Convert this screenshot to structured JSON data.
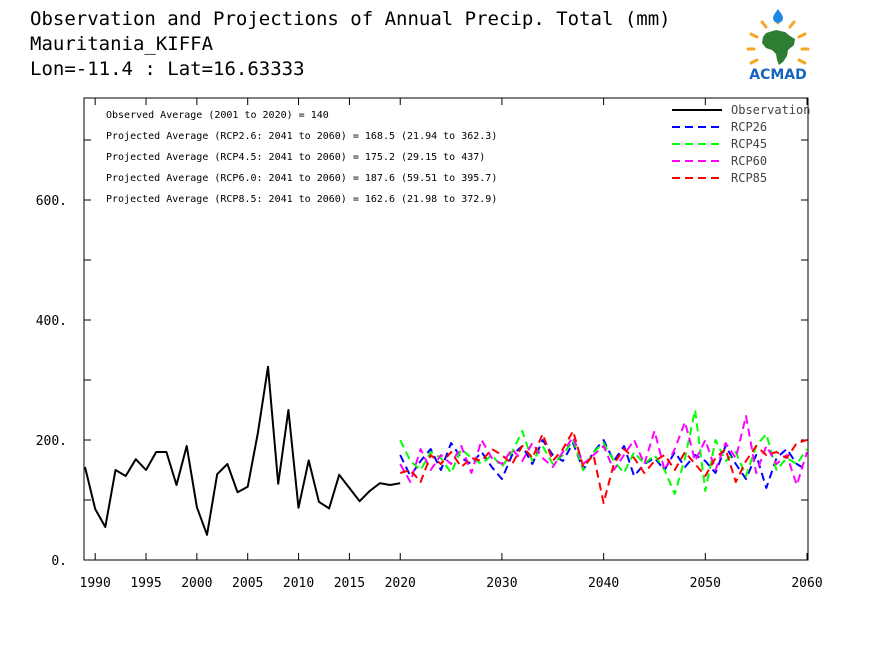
{
  "header": {
    "line1": "Observation and Projections of Annual Precip. Total (mm)",
    "line2": "Mauritania_KIFFA",
    "line3": "Lon=-11.4 : Lat=16.63333"
  },
  "logo": {
    "text": "ACMAD",
    "colors": {
      "africa": "#2e7d32",
      "rays": "#f5a623",
      "text": "#1565c0",
      "drop": "#1e88e5"
    }
  },
  "stats": [
    "Observed Average (2001 to 2020) = 140",
    "Projected Average (RCP2.6: 2041 to 2060) = 168.5 (21.94 to 362.3)",
    "Projected Average (RCP4.5: 2041 to 2060) = 175.2 (29.15 to 437)",
    "Projected Average (RCP6.0: 2041 to 2060) = 187.6 (59.51 to 395.7)",
    "Projected Average (RCP8.5: 2041 to 2060) = 162.6 (21.98 to 372.9)"
  ],
  "chart_data": {
    "type": "line",
    "xlim": [
      1989,
      2060
    ],
    "ylim": [
      0,
      770
    ],
    "grid": false,
    "legend_position": "top-right",
    "x_ticks": [
      {
        "value": 1990,
        "label": "1990"
      },
      {
        "value": 1995,
        "label": "1995"
      },
      {
        "value": 2000,
        "label": "2000"
      },
      {
        "value": 2005,
        "label": "2005"
      },
      {
        "value": 2010,
        "label": "2010"
      },
      {
        "value": 2015,
        "label": "2015"
      },
      {
        "value": 2020,
        "label": "2020"
      },
      {
        "value": 2030,
        "label": "2030"
      },
      {
        "value": 2040,
        "label": "2040"
      },
      {
        "value": 2050,
        "label": "2050"
      },
      {
        "value": 2060,
        "label": "2060"
      }
    ],
    "y_ticks": [
      {
        "value": 0,
        "label": "0."
      },
      {
        "value": 200,
        "label": "200."
      },
      {
        "value": 400,
        "label": "400."
      },
      {
        "value": 600,
        "label": "600."
      }
    ],
    "y_minor_ticks": [
      100,
      300,
      500,
      700
    ],
    "series": [
      {
        "name": "Observation",
        "color": "#000000",
        "dash": "solid",
        "x": [
          1989,
          1990,
          1991,
          1992,
          1993,
          1994,
          1995,
          1996,
          1997,
          1998,
          1999,
          2000,
          2001,
          2002,
          2003,
          2004,
          2005,
          2006,
          2007,
          2008,
          2009,
          2010,
          2011,
          2012,
          2013,
          2014,
          2015,
          2016,
          2017,
          2018,
          2019,
          2020
        ],
        "y": [
          155,
          85,
          55,
          150,
          140,
          168,
          150,
          180,
          180,
          125,
          190,
          88,
          42,
          143,
          160,
          113,
          122,
          212,
          322,
          127,
          250,
          87,
          166,
          97,
          86,
          142,
          120,
          98,
          115,
          128,
          125,
          128
        ]
      },
      {
        "name": "RCP26",
        "color": "#0000ff",
        "dash": "dashed",
        "x": [
          2020,
          2021,
          2022,
          2023,
          2024,
          2025,
          2026,
          2027,
          2028,
          2029,
          2030,
          2031,
          2032,
          2033,
          2034,
          2035,
          2036,
          2037,
          2038,
          2039,
          2040,
          2041,
          2042,
          2043,
          2044,
          2045,
          2046,
          2047,
          2048,
          2049,
          2050,
          2051,
          2052,
          2053,
          2054,
          2055,
          2056,
          2057,
          2058,
          2059,
          2060
        ],
        "y": [
          175,
          140,
          165,
          185,
          150,
          195,
          170,
          160,
          180,
          155,
          135,
          175,
          190,
          160,
          200,
          175,
          165,
          195,
          150,
          180,
          200,
          165,
          190,
          140,
          160,
          170,
          150,
          180,
          155,
          175,
          165,
          145,
          190,
          160,
          135,
          175,
          120,
          170,
          185,
          160,
          150
        ]
      },
      {
        "name": "RCP45",
        "color": "#00ff00",
        "dash": "dashed",
        "x": [
          2020,
          2021,
          2022,
          2023,
          2024,
          2025,
          2026,
          2027,
          2028,
          2029,
          2030,
          2031,
          2032,
          2033,
          2034,
          2035,
          2036,
          2037,
          2038,
          2039,
          2040,
          2041,
          2042,
          2043,
          2044,
          2045,
          2046,
          2047,
          2048,
          2049,
          2050,
          2051,
          2052,
          2053,
          2054,
          2055,
          2056,
          2057,
          2058,
          2059,
          2060
        ],
        "y": [
          200,
          165,
          150,
          180,
          170,
          145,
          185,
          170,
          160,
          175,
          155,
          180,
          215,
          165,
          190,
          160,
          175,
          200,
          150,
          180,
          195,
          165,
          145,
          180,
          160,
          175,
          150,
          110,
          170,
          250,
          115,
          200,
          165,
          180,
          140,
          190,
          210,
          150,
          170,
          160,
          185
        ]
      },
      {
        "name": "RCP60",
        "color": "#ff00ff",
        "dash": "dashed",
        "x": [
          2020,
          2021,
          2022,
          2023,
          2024,
          2025,
          2026,
          2027,
          2028,
          2029,
          2030,
          2031,
          2032,
          2033,
          2034,
          2035,
          2036,
          2037,
          2038,
          2039,
          2040,
          2041,
          2042,
          2043,
          2044,
          2045,
          2046,
          2047,
          2048,
          2049,
          2050,
          2051,
          2052,
          2053,
          2054,
          2055,
          2056,
          2057,
          2058,
          2059,
          2060
        ],
        "y": [
          160,
          130,
          185,
          150,
          175,
          160,
          190,
          145,
          200,
          170,
          160,
          185,
          165,
          195,
          170,
          155,
          180,
          205,
          160,
          175,
          190,
          150,
          175,
          200,
          160,
          215,
          150,
          185,
          230,
          165,
          200,
          150,
          195,
          170,
          240,
          145,
          190,
          160,
          175,
          125,
          180
        ]
      },
      {
        "name": "RCP85",
        "color": "#ff0000",
        "dash": "dashed",
        "x": [
          2020,
          2021,
          2022,
          2023,
          2024,
          2025,
          2026,
          2027,
          2028,
          2029,
          2030,
          2031,
          2032,
          2033,
          2034,
          2035,
          2036,
          2037,
          2038,
          2039,
          2040,
          2041,
          2042,
          2043,
          2044,
          2045,
          2046,
          2047,
          2048,
          2049,
          2050,
          2051,
          2052,
          2053,
          2054,
          2055,
          2056,
          2057,
          2058,
          2059,
          2060
        ],
        "y": [
          145,
          150,
          130,
          175,
          160,
          180,
          155,
          170,
          165,
          185,
          175,
          160,
          190,
          170,
          210,
          165,
          185,
          215,
          155,
          175,
          95,
          160,
          185,
          170,
          145,
          165,
          175,
          150,
          180,
          160,
          140,
          170,
          185,
          130,
          165,
          190,
          175,
          180,
          170,
          195,
          200
        ]
      }
    ]
  }
}
